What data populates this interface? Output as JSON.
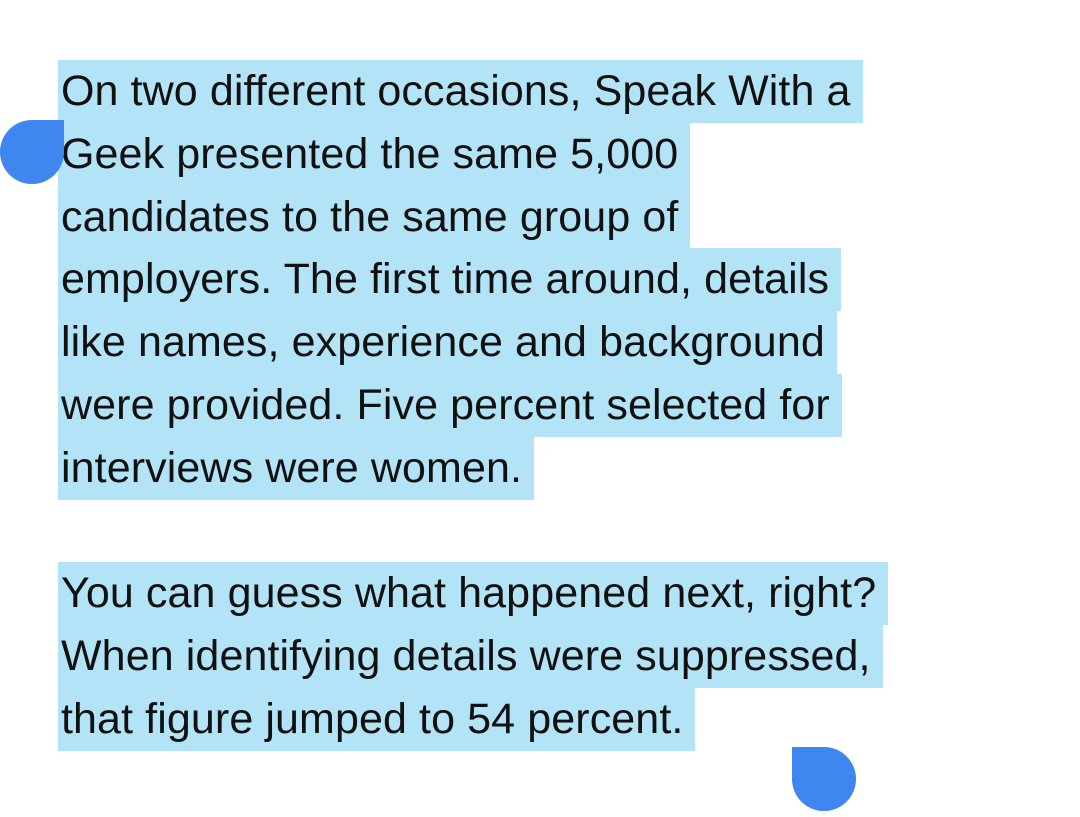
{
  "selection": {
    "highlight_color": "#b3e3f6",
    "handle_color": "#3f86f1",
    "paragraphs": [
      {
        "lines": [
          "On two different occasions, Speak With a",
          "Geek presented the same 5,000",
          "candidates to the same group of",
          "employers. The first time around, details",
          "like names, experience and background",
          "were provided. Five percent selected for",
          "interviews were women."
        ]
      },
      {
        "lines": [
          "You can guess what happened next, right?",
          "When identifying details were suppressed,",
          "that figure jumped to 54 percent."
        ]
      }
    ]
  }
}
